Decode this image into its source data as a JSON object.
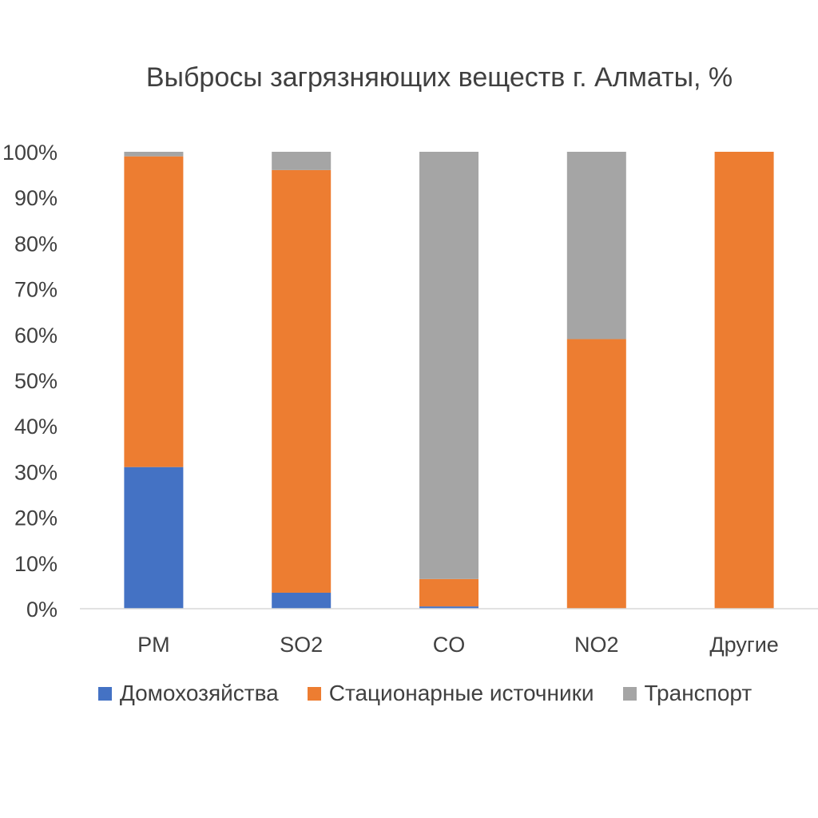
{
  "chart_data": {
    "type": "bar",
    "stacked": true,
    "title": "Выбросы загрязняющих веществ г. Алматы, %",
    "categories": [
      "PM",
      "SO2",
      "CO",
      "NO2",
      "Другие"
    ],
    "series": [
      {
        "name": "Домохозяйства",
        "color": "#4472C4",
        "values": [
          31,
          3.5,
          0.5,
          0,
          0
        ]
      },
      {
        "name": "Стационарные источники",
        "color": "#ED7D31",
        "values": [
          68,
          92.5,
          6,
          59,
          100
        ]
      },
      {
        "name": "Транспорт",
        "color": "#A5A5A5",
        "values": [
          1,
          4,
          93.5,
          41,
          0
        ]
      }
    ],
    "ylim": [
      0,
      100
    ],
    "yticks": [
      "0%",
      "10%",
      "20%",
      "30%",
      "40%",
      "50%",
      "60%",
      "70%",
      "80%",
      "90%",
      "100%"
    ],
    "grid": false,
    "legend_position": "bottom"
  }
}
